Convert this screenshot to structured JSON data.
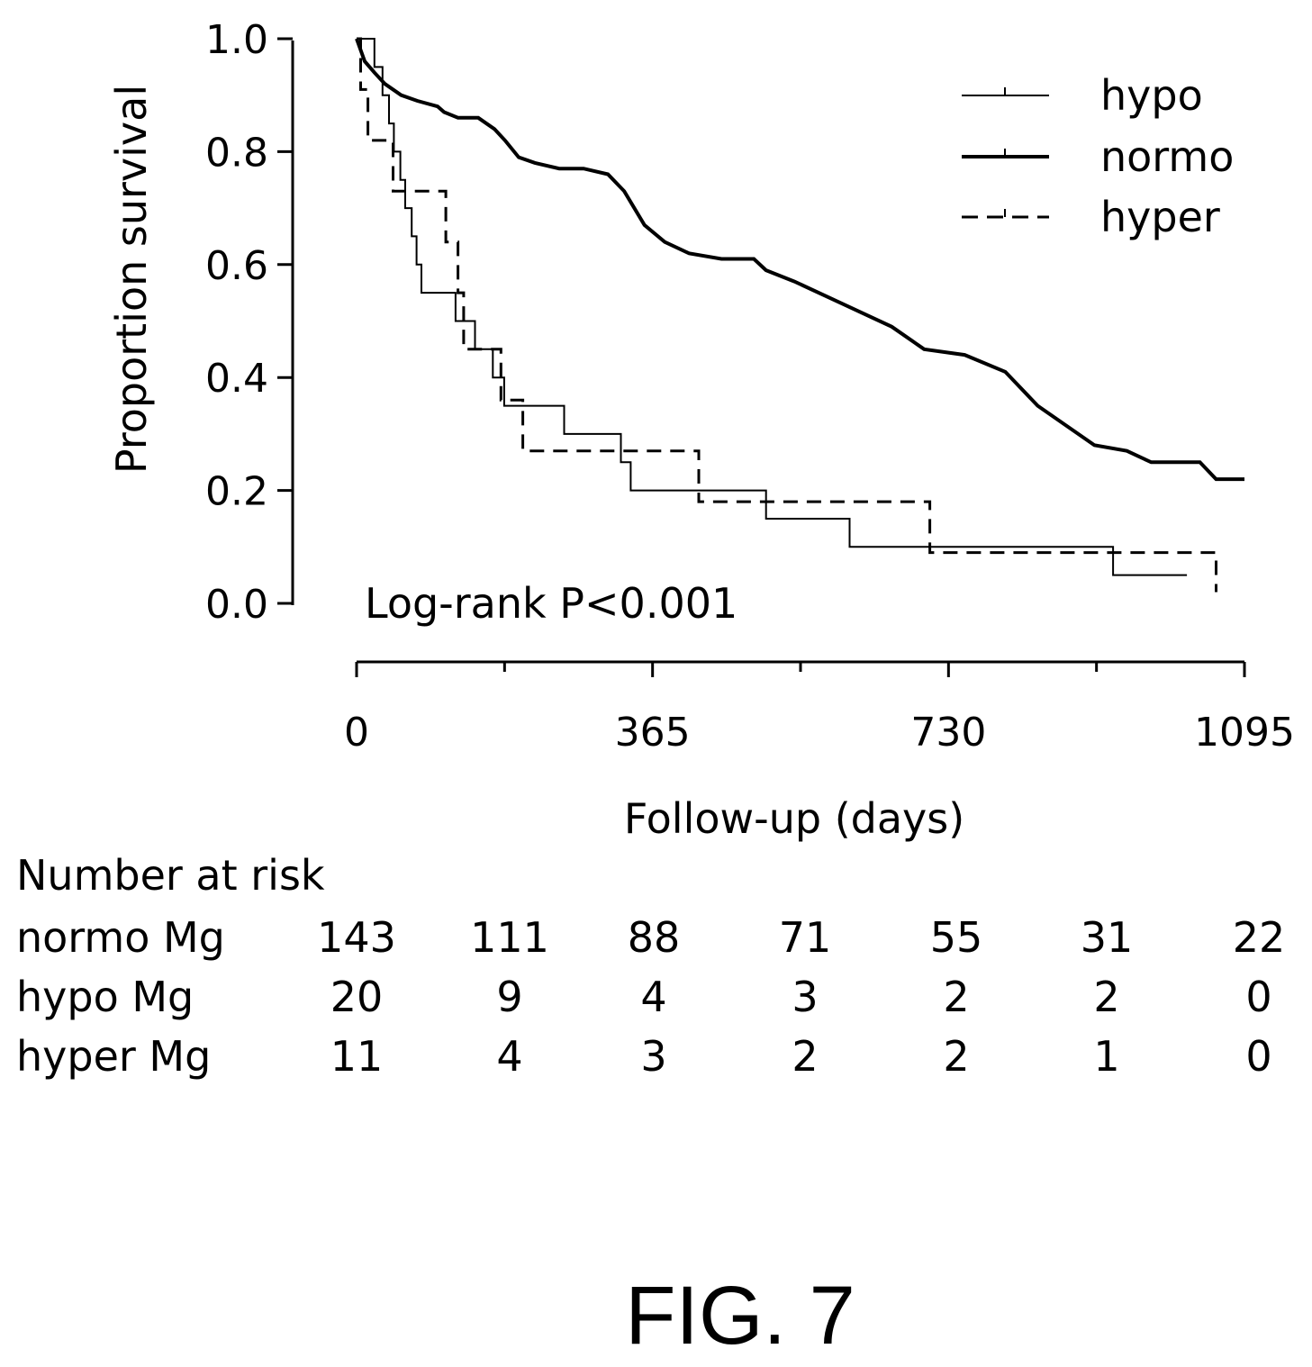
{
  "chart_data": {
    "type": "line",
    "subtype": "kaplan-meier step curve",
    "xlabel": "Follow-up (days)",
    "ylabel": "Proportion survival",
    "xlim": [
      0,
      1095
    ],
    "ylim": [
      0,
      1.0
    ],
    "x_ticks": [
      0,
      365,
      730,
      1095
    ],
    "x_minor_ticks": [
      182.5,
      547.5,
      912.5
    ],
    "y_ticks": [
      "0.0",
      "0.2",
      "0.4",
      "0.6",
      "0.8",
      "1.0"
    ],
    "y_tick_values": [
      0,
      0.2,
      0.4,
      0.6,
      0.8,
      1.0
    ],
    "grid": false,
    "legend_position": "top-right",
    "annotation": "Log-rank P<0.001",
    "series": [
      {
        "name": "hypo",
        "style": "thin-solid",
        "points": [
          [
            0,
            1.0
          ],
          [
            22,
            1.0
          ],
          [
            22,
            0.95
          ],
          [
            32,
            0.95
          ],
          [
            32,
            0.9
          ],
          [
            40,
            0.9
          ],
          [
            40,
            0.85
          ],
          [
            46,
            0.85
          ],
          [
            46,
            0.8
          ],
          [
            54,
            0.8
          ],
          [
            54,
            0.75
          ],
          [
            60,
            0.75
          ],
          [
            60,
            0.7
          ],
          [
            68,
            0.7
          ],
          [
            68,
            0.65
          ],
          [
            74,
            0.65
          ],
          [
            74,
            0.6
          ],
          [
            80,
            0.6
          ],
          [
            80,
            0.55
          ],
          [
            122,
            0.55
          ],
          [
            122,
            0.5
          ],
          [
            146,
            0.5
          ],
          [
            146,
            0.45
          ],
          [
            168,
            0.45
          ],
          [
            168,
            0.4
          ],
          [
            182,
            0.4
          ],
          [
            182,
            0.35
          ],
          [
            256,
            0.35
          ],
          [
            256,
            0.3
          ],
          [
            326,
            0.3
          ],
          [
            326,
            0.25
          ],
          [
            338,
            0.25
          ],
          [
            338,
            0.2
          ],
          [
            505,
            0.2
          ],
          [
            505,
            0.15
          ],
          [
            608,
            0.15
          ],
          [
            608,
            0.1
          ],
          [
            933,
            0.1
          ],
          [
            933,
            0.05
          ],
          [
            1024,
            0.05
          ]
        ]
      },
      {
        "name": "normo",
        "style": "thick-solid",
        "points": [
          [
            0,
            1.0
          ],
          [
            10,
            0.96
          ],
          [
            22,
            0.94
          ],
          [
            35,
            0.92
          ],
          [
            55,
            0.9
          ],
          [
            75,
            0.89
          ],
          [
            100,
            0.88
          ],
          [
            108,
            0.87
          ],
          [
            125,
            0.86
          ],
          [
            150,
            0.86
          ],
          [
            170,
            0.84
          ],
          [
            183,
            0.82
          ],
          [
            200,
            0.79
          ],
          [
            220,
            0.78
          ],
          [
            250,
            0.77
          ],
          [
            280,
            0.77
          ],
          [
            310,
            0.76
          ],
          [
            330,
            0.73
          ],
          [
            355,
            0.67
          ],
          [
            380,
            0.64
          ],
          [
            410,
            0.62
          ],
          [
            450,
            0.61
          ],
          [
            490,
            0.61
          ],
          [
            505,
            0.59
          ],
          [
            540,
            0.57
          ],
          [
            600,
            0.53
          ],
          [
            660,
            0.49
          ],
          [
            700,
            0.45
          ],
          [
            750,
            0.44
          ],
          [
            800,
            0.41
          ],
          [
            840,
            0.35
          ],
          [
            880,
            0.31
          ],
          [
            910,
            0.28
          ],
          [
            950,
            0.27
          ],
          [
            980,
            0.25
          ],
          [
            1040,
            0.25
          ],
          [
            1060,
            0.22
          ],
          [
            1095,
            0.22
          ]
        ]
      },
      {
        "name": "hyper",
        "style": "dashed",
        "points": [
          [
            0,
            1.0
          ],
          [
            5,
            1.0
          ],
          [
            5,
            0.91
          ],
          [
            14,
            0.91
          ],
          [
            14,
            0.82
          ],
          [
            45,
            0.82
          ],
          [
            45,
            0.73
          ],
          [
            110,
            0.73
          ],
          [
            110,
            0.64
          ],
          [
            125,
            0.64
          ],
          [
            125,
            0.55
          ],
          [
            132,
            0.55
          ],
          [
            132,
            0.45
          ],
          [
            178,
            0.45
          ],
          [
            178,
            0.36
          ],
          [
            205,
            0.36
          ],
          [
            205,
            0.27
          ],
          [
            422,
            0.27
          ],
          [
            422,
            0.18
          ],
          [
            707,
            0.18
          ],
          [
            707,
            0.09
          ],
          [
            1060,
            0.09
          ],
          [
            1060,
            0.02
          ]
        ]
      }
    ]
  },
  "risk_table": {
    "title": "Number at risk",
    "rows": [
      {
        "label": "normo Mg",
        "values": [
          "143",
          "111",
          "88",
          "71",
          "55",
          "31",
          "22"
        ]
      },
      {
        "label": "hypo Mg",
        "values": [
          "20",
          "9",
          "4",
          "3",
          "2",
          "2",
          "0"
        ]
      },
      {
        "label": "hyper Mg",
        "values": [
          "11",
          "4",
          "3",
          "2",
          "2",
          "1",
          "0"
        ]
      }
    ]
  },
  "caption": "FIG. 7"
}
